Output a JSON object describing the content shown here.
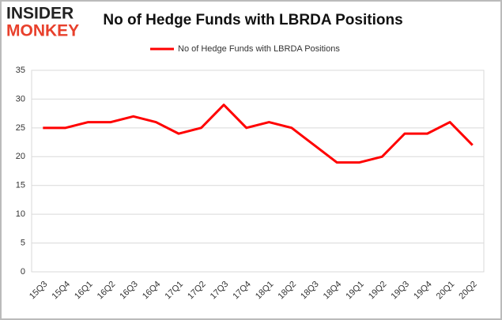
{
  "logo": {
    "line1": "INSIDER",
    "line2": "MONKEY"
  },
  "chart_data": {
    "type": "line",
    "title": "No of Hedge Funds with LBRDA Positions",
    "categories": [
      "15Q3",
      "15Q4",
      "16Q1",
      "16Q2",
      "16Q3",
      "16Q4",
      "17Q1",
      "17Q2",
      "17Q3",
      "17Q4",
      "18Q1",
      "18Q2",
      "18Q3",
      "18Q4",
      "19Q1",
      "19Q2",
      "19Q3",
      "19Q4",
      "20Q1",
      "20Q2"
    ],
    "series": [
      {
        "name": "No of Hedge Funds with LBRDA Positions",
        "color": "#ff0000",
        "values": [
          25,
          25,
          26,
          26,
          27,
          26,
          24,
          25,
          29,
          25,
          26,
          25,
          22,
          19,
          19,
          20,
          24,
          24,
          26,
          22
        ]
      }
    ],
    "ylim": [
      0,
      35
    ],
    "yticks": [
      0,
      5,
      10,
      15,
      20,
      25,
      30,
      35
    ],
    "grid": true,
    "legend": "top"
  }
}
